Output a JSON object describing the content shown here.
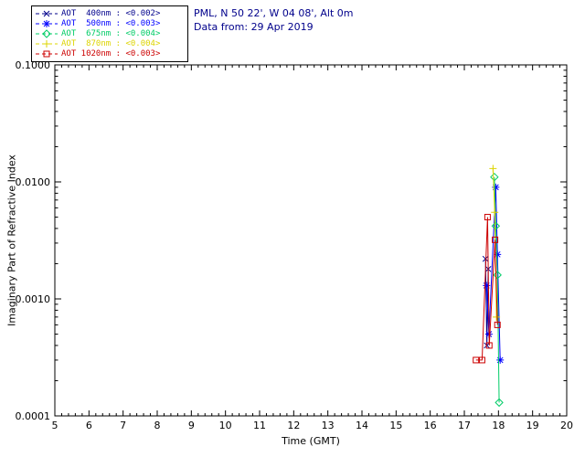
{
  "header": {
    "location": "PML, N 50 22', W 04 08', Alt 0m",
    "date": "Data from: 29 Apr 2019"
  },
  "legend": {
    "items": [
      {
        "label": "AOT  400nm",
        "value": "<0.002>",
        "color": "#00008b",
        "marker": "x"
      },
      {
        "label": "AOT  500nm",
        "value": "<0.003>",
        "color": "#0000ff",
        "marker": "asterisk"
      },
      {
        "label": "AOT  675nm",
        "value": "<0.004>",
        "color": "#00cc66",
        "marker": "diamond"
      },
      {
        "label": "AOT  870nm",
        "value": "<0.004>",
        "color": "#ddd400",
        "marker": "plus"
      },
      {
        "label": "AOT 1020nm",
        "value": "<0.003>",
        "color": "#cc0000",
        "marker": "square"
      }
    ]
  },
  "chart_data": {
    "type": "line",
    "title": "",
    "xlabel": "Time (GMT)",
    "ylabel": "Imaginary Part of Refractive Index",
    "x_axis": {
      "min": 5,
      "max": 20,
      "ticks": [
        5,
        6,
        7,
        8,
        9,
        10,
        11,
        12,
        13,
        14,
        15,
        16,
        17,
        18,
        19,
        20
      ],
      "minor_step": 0.2
    },
    "y_axis": {
      "scale": "log",
      "min": 0.0001,
      "max": 0.1,
      "ticks": [
        0.0001,
        0.001,
        0.01,
        0.1
      ],
      "tick_labels": [
        "0.0001",
        "0.0010",
        "0.0100",
        "0.1000"
      ]
    },
    "grid": false,
    "legend_position": "top-left",
    "series": [
      {
        "name": "AOT 400nm",
        "color": "#00008b",
        "marker": "x",
        "points": [
          [
            17.62,
            0.0022
          ],
          [
            17.66,
            0.0004
          ],
          [
            17.7,
            0.0018
          ]
        ]
      },
      {
        "name": "AOT 500nm",
        "color": "#0000ff",
        "marker": "asterisk",
        "points": [
          [
            17.65,
            0.0013
          ],
          [
            17.72,
            0.0005
          ],
          [
            17.92,
            0.009
          ],
          [
            17.97,
            0.0024
          ],
          [
            18.05,
            0.0003
          ]
        ]
      },
      {
        "name": "AOT 675nm",
        "color": "#00cc66",
        "marker": "diamond",
        "points": [
          [
            17.88,
            0.011
          ],
          [
            17.92,
            0.0042
          ],
          [
            17.97,
            0.0016
          ],
          [
            18.02,
            0.00013
          ]
        ]
      },
      {
        "name": "AOT 870nm",
        "color": "#ddd400",
        "marker": "plus",
        "points": [
          [
            17.84,
            0.013
          ],
          [
            17.89,
            0.0055
          ],
          [
            17.94,
            0.0007
          ]
        ]
      },
      {
        "name": "AOT 1020nm",
        "color": "#cc0000",
        "marker": "square",
        "points": [
          [
            17.34,
            0.0003
          ],
          [
            17.52,
            0.0003
          ],
          [
            17.68,
            0.005
          ],
          [
            17.73,
            0.0004
          ],
          [
            17.9,
            0.0032
          ],
          [
            17.97,
            0.0006
          ]
        ]
      }
    ]
  }
}
